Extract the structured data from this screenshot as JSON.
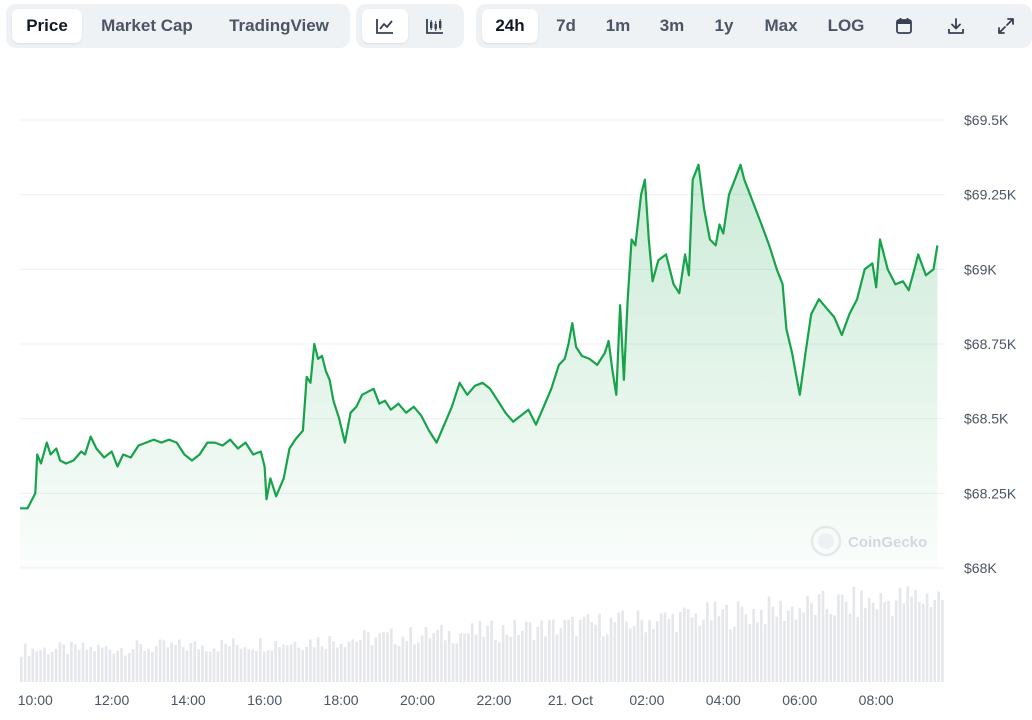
{
  "toolbar": {
    "view_tabs": [
      {
        "label": "Price",
        "active": true
      },
      {
        "label": "Market Cap",
        "active": false
      },
      {
        "label": "TradingView",
        "active": false
      }
    ],
    "chart_type_buttons": [
      {
        "icon": "line-chart-icon",
        "active": true
      },
      {
        "icon": "candlestick-icon",
        "active": false
      }
    ],
    "ranges": [
      {
        "label": "24h",
        "active": true
      },
      {
        "label": "7d",
        "active": false
      },
      {
        "label": "1m",
        "active": false
      },
      {
        "label": "3m",
        "active": false
      },
      {
        "label": "1y",
        "active": false
      },
      {
        "label": "Max",
        "active": false
      },
      {
        "label": "LOG",
        "active": false
      }
    ],
    "tool_icons": [
      "calendar-icon",
      "download-icon",
      "expand-icon"
    ]
  },
  "watermark": "CoinGecko",
  "colors": {
    "line": "#16a34a",
    "area_top": "#16a34a",
    "grid": "#eef0f3",
    "volume": "#e5e7eb",
    "active_tab_bg": "#ffffff",
    "tab_group_bg": "#eff2f5"
  },
  "chart_data": {
    "type": "area",
    "title": "",
    "xlabel": "",
    "ylabel": "",
    "ylim": [
      68000,
      69500
    ],
    "y_ticks": [
      69500,
      69250,
      69000,
      68750,
      68500,
      68250,
      68000
    ],
    "y_tick_labels": [
      "$69.5K",
      "$69.25K",
      "$69K",
      "$68.75K",
      "$68.5K",
      "$68.25K",
      "$68K"
    ],
    "x_tick_labels": [
      "10:00",
      "12:00",
      "14:00",
      "16:00",
      "18:00",
      "20:00",
      "22:00",
      "21. Oct",
      "02:00",
      "04:00",
      "06:00",
      "08:00"
    ],
    "x_range_hours": [
      9.6,
      33.8
    ],
    "x_ticks_hours": [
      10,
      12,
      14,
      16,
      18,
      20,
      22,
      24,
      26,
      28,
      30,
      32
    ],
    "series": [
      {
        "values": [
          [
            9.6,
            68200
          ],
          [
            9.8,
            68200
          ],
          [
            10.0,
            68250
          ],
          [
            10.05,
            68380
          ],
          [
            10.15,
            68350
          ],
          [
            10.3,
            68420
          ],
          [
            10.4,
            68380
          ],
          [
            10.55,
            68400
          ],
          [
            10.65,
            68360
          ],
          [
            10.8,
            68350
          ],
          [
            11.0,
            68360
          ],
          [
            11.2,
            68390
          ],
          [
            11.3,
            68380
          ],
          [
            11.45,
            68440
          ],
          [
            11.6,
            68400
          ],
          [
            11.8,
            68370
          ],
          [
            12.0,
            68390
          ],
          [
            12.15,
            68340
          ],
          [
            12.3,
            68380
          ],
          [
            12.5,
            68370
          ],
          [
            12.7,
            68410
          ],
          [
            12.9,
            68420
          ],
          [
            13.1,
            68430
          ],
          [
            13.3,
            68420
          ],
          [
            13.5,
            68430
          ],
          [
            13.7,
            68420
          ],
          [
            13.9,
            68380
          ],
          [
            14.1,
            68360
          ],
          [
            14.3,
            68380
          ],
          [
            14.5,
            68420
          ],
          [
            14.7,
            68420
          ],
          [
            14.9,
            68410
          ],
          [
            15.1,
            68430
          ],
          [
            15.3,
            68400
          ],
          [
            15.5,
            68420
          ],
          [
            15.7,
            68380
          ],
          [
            15.9,
            68390
          ],
          [
            16.0,
            68340
          ],
          [
            16.05,
            68230
          ],
          [
            16.15,
            68300
          ],
          [
            16.3,
            68240
          ],
          [
            16.5,
            68300
          ],
          [
            16.65,
            68400
          ],
          [
            16.8,
            68430
          ],
          [
            17.0,
            68460
          ],
          [
            17.1,
            68640
          ],
          [
            17.2,
            68620
          ],
          [
            17.3,
            68750
          ],
          [
            17.4,
            68700
          ],
          [
            17.5,
            68710
          ],
          [
            17.6,
            68660
          ],
          [
            17.7,
            68630
          ],
          [
            17.8,
            68560
          ],
          [
            17.95,
            68500
          ],
          [
            18.1,
            68420
          ],
          [
            18.25,
            68520
          ],
          [
            18.4,
            68540
          ],
          [
            18.55,
            68580
          ],
          [
            18.7,
            68590
          ],
          [
            18.85,
            68600
          ],
          [
            19.0,
            68550
          ],
          [
            19.15,
            68560
          ],
          [
            19.3,
            68530
          ],
          [
            19.5,
            68550
          ],
          [
            19.7,
            68520
          ],
          [
            19.9,
            68540
          ],
          [
            20.1,
            68510
          ],
          [
            20.3,
            68460
          ],
          [
            20.5,
            68420
          ],
          [
            20.7,
            68480
          ],
          [
            20.9,
            68540
          ],
          [
            21.1,
            68620
          ],
          [
            21.3,
            68580
          ],
          [
            21.5,
            68610
          ],
          [
            21.7,
            68620
          ],
          [
            21.9,
            68600
          ],
          [
            22.1,
            68560
          ],
          [
            22.3,
            68520
          ],
          [
            22.5,
            68490
          ],
          [
            22.7,
            68510
          ],
          [
            22.9,
            68530
          ],
          [
            23.1,
            68480
          ],
          [
            23.3,
            68540
          ],
          [
            23.5,
            68600
          ],
          [
            23.7,
            68680
          ],
          [
            23.85,
            68700
          ],
          [
            23.95,
            68750
          ],
          [
            24.05,
            68820
          ],
          [
            24.15,
            68740
          ],
          [
            24.3,
            68710
          ],
          [
            24.5,
            68700
          ],
          [
            24.7,
            68680
          ],
          [
            24.9,
            68720
          ],
          [
            25.0,
            68760
          ],
          [
            25.1,
            68660
          ],
          [
            25.2,
            68580
          ],
          [
            25.3,
            68880
          ],
          [
            25.4,
            68630
          ],
          [
            25.5,
            68900
          ],
          [
            25.6,
            69100
          ],
          [
            25.7,
            69080
          ],
          [
            25.85,
            69250
          ],
          [
            25.95,
            69300
          ],
          [
            26.05,
            69100
          ],
          [
            26.15,
            68960
          ],
          [
            26.3,
            69030
          ],
          [
            26.5,
            69050
          ],
          [
            26.7,
            68950
          ],
          [
            26.85,
            68920
          ],
          [
            27.0,
            69050
          ],
          [
            27.1,
            68980
          ],
          [
            27.2,
            69300
          ],
          [
            27.35,
            69350
          ],
          [
            27.5,
            69200
          ],
          [
            27.65,
            69100
          ],
          [
            27.8,
            69080
          ],
          [
            27.9,
            69150
          ],
          [
            28.0,
            69120
          ],
          [
            28.15,
            69250
          ],
          [
            28.3,
            69300
          ],
          [
            28.45,
            69350
          ],
          [
            28.55,
            69300
          ],
          [
            28.7,
            69250
          ],
          [
            28.85,
            69200
          ],
          [
            29.0,
            69150
          ],
          [
            29.2,
            69080
          ],
          [
            29.4,
            69000
          ],
          [
            29.55,
            68950
          ],
          [
            29.65,
            68800
          ],
          [
            29.8,
            68720
          ],
          [
            29.9,
            68650
          ],
          [
            30.0,
            68580
          ],
          [
            30.15,
            68720
          ],
          [
            30.3,
            68850
          ],
          [
            30.5,
            68900
          ],
          [
            30.7,
            68870
          ],
          [
            30.9,
            68840
          ],
          [
            31.1,
            68780
          ],
          [
            31.3,
            68850
          ],
          [
            31.5,
            68900
          ],
          [
            31.7,
            69000
          ],
          [
            31.9,
            69020
          ],
          [
            32.0,
            68940
          ],
          [
            32.1,
            69100
          ],
          [
            32.3,
            69000
          ],
          [
            32.5,
            68950
          ],
          [
            32.7,
            68960
          ],
          [
            32.85,
            68930
          ],
          [
            33.0,
            69000
          ],
          [
            33.1,
            69050
          ],
          [
            33.3,
            68980
          ],
          [
            33.5,
            69000
          ],
          [
            33.6,
            69080
          ]
        ]
      }
    ],
    "volume_note": "volume bars along bottom, gradually increasing toward the right"
  }
}
